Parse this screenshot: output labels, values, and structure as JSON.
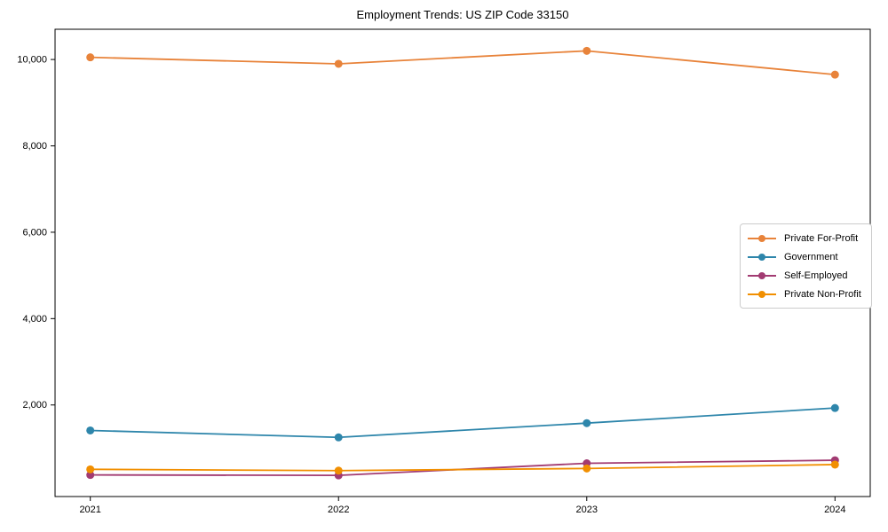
{
  "chart_data": {
    "type": "line",
    "title": "Employment Trends: US ZIP Code 33150",
    "xlabel": "",
    "ylabel": "",
    "x": [
      2021,
      2022,
      2023,
      2024
    ],
    "x_labels": [
      "2021",
      "2022",
      "2023",
      "2024"
    ],
    "yticks": [
      2000,
      4000,
      6000,
      8000,
      10000
    ],
    "ytick_labels": [
      "2,000",
      "4,000",
      "6,000",
      "8,000",
      "10,000"
    ],
    "ylim": [
      -120,
      10700
    ],
    "grid": false,
    "legend_position": "right-center",
    "marker": "o",
    "series": [
      {
        "name": "Private For-Profit",
        "color": "#E8833A",
        "values": [
          10050,
          9900,
          10200,
          9650
        ]
      },
      {
        "name": "Government",
        "color": "#2E86AB",
        "values": [
          1410,
          1250,
          1580,
          1930
        ]
      },
      {
        "name": "Self-Employed",
        "color": "#A23B72",
        "values": [
          380,
          370,
          650,
          720
        ]
      },
      {
        "name": "Private Non-Profit",
        "color": "#F18F01",
        "values": [
          510,
          480,
          530,
          620
        ]
      }
    ]
  }
}
